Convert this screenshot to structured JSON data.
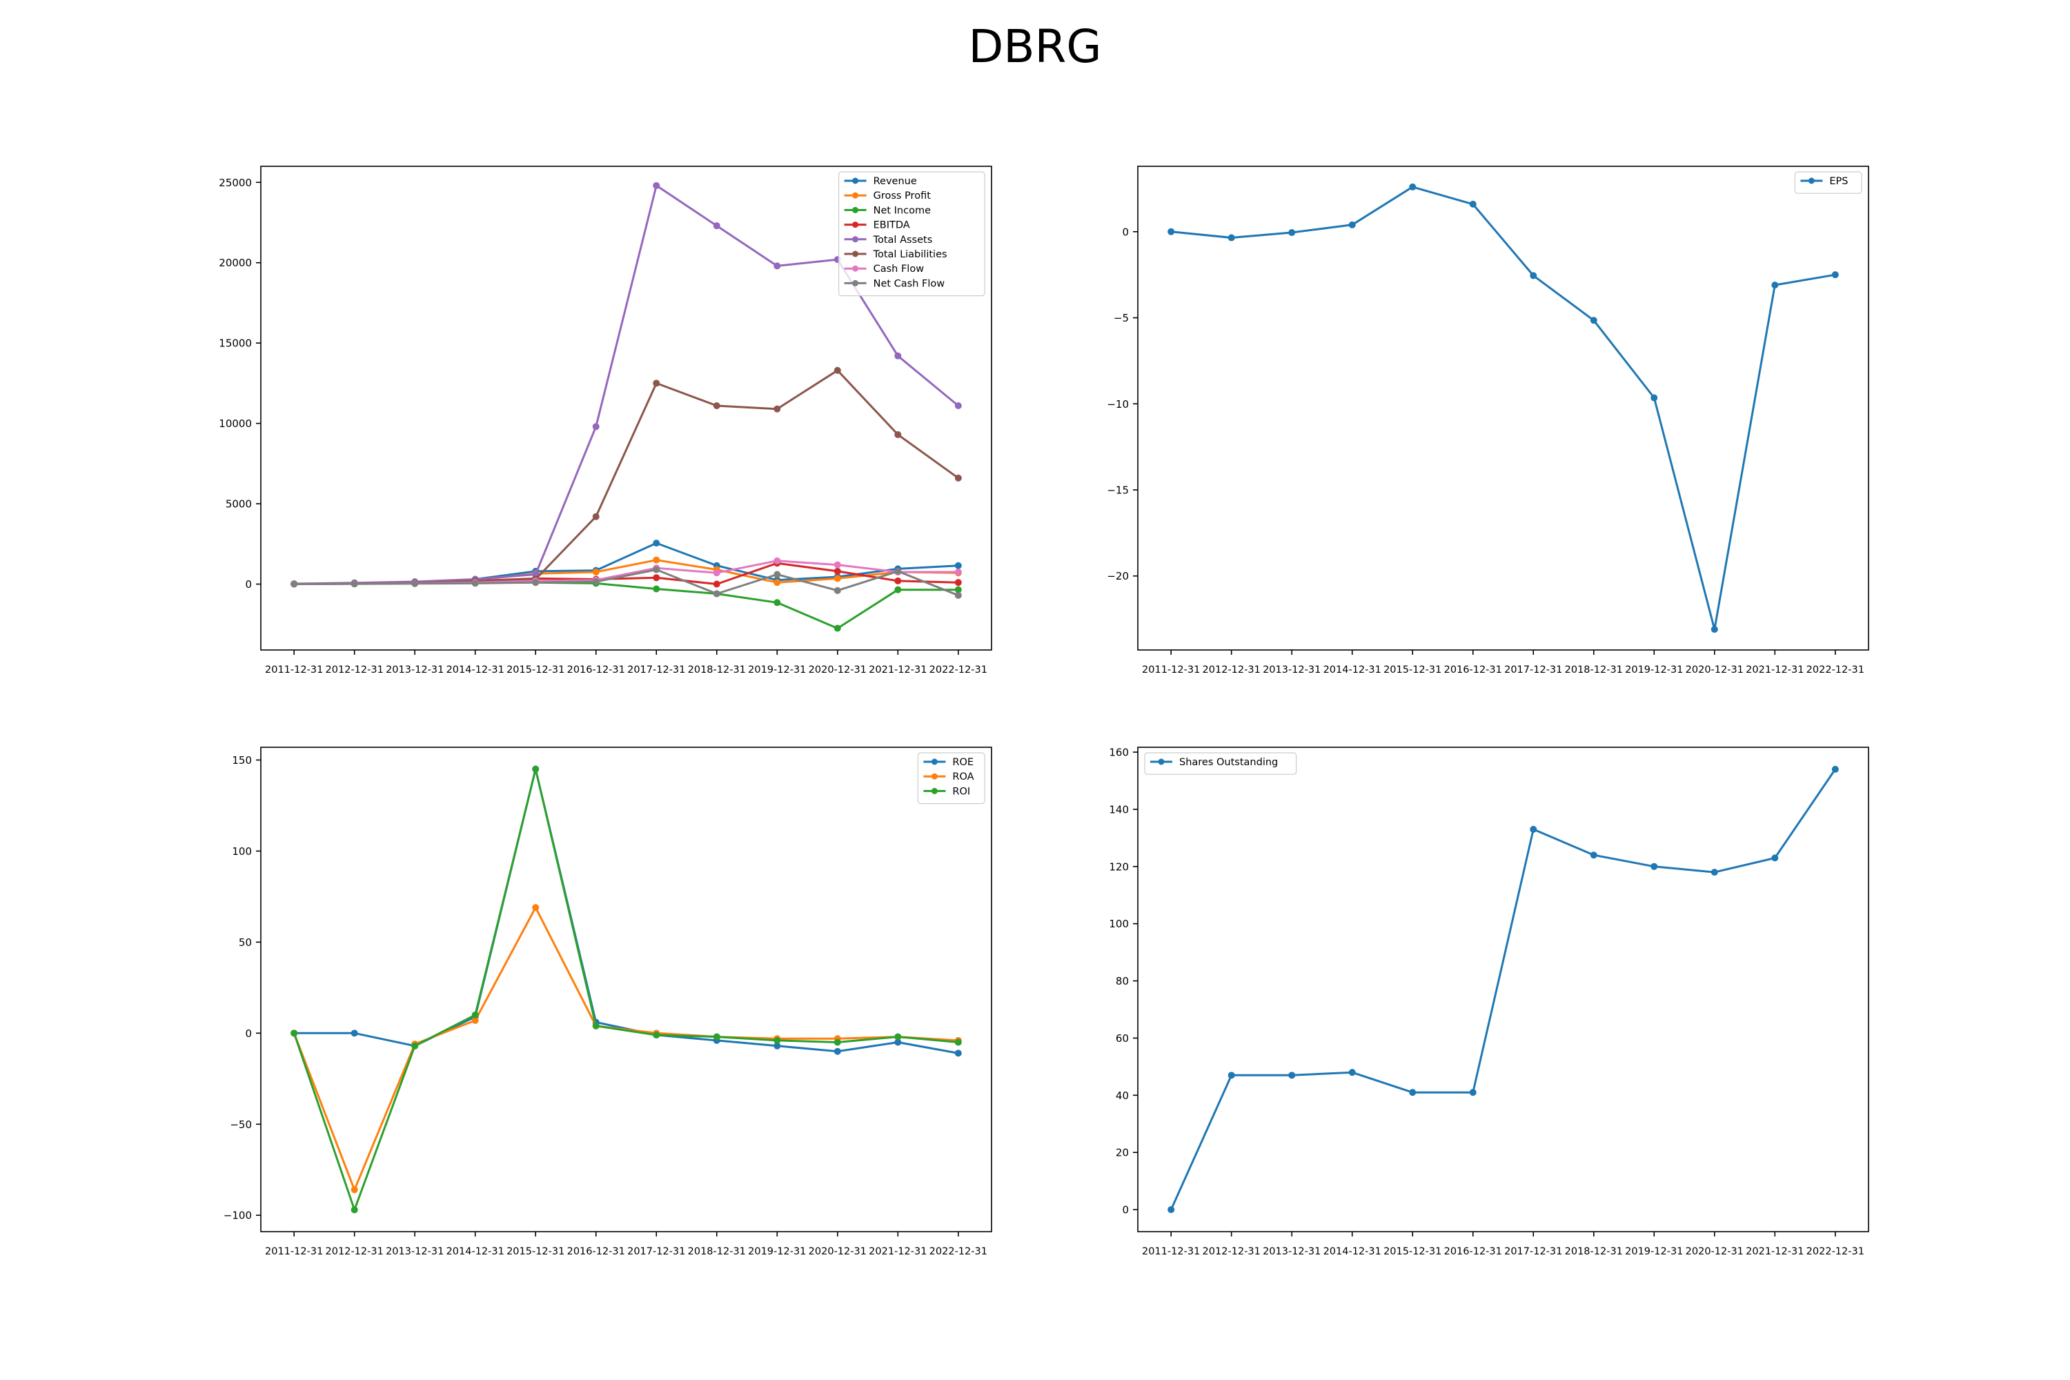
{
  "figure": {
    "title": "DBRG"
  },
  "colors": {
    "Revenue": "#1f77b4",
    "Gross Profit": "#ff7f0e",
    "Net Income": "#2ca02c",
    "EBITDA": "#d62728",
    "Total Assets": "#9467bd",
    "Total Liabilities": "#8c564b",
    "Cash Flow": "#e377c2",
    "Net Cash Flow": "#7f7f7f"
  },
  "chart_data": [
    {
      "type": "line",
      "x": [
        "2011-12-31",
        "2012-12-31",
        "2013-12-31",
        "2014-12-31",
        "2015-12-31",
        "2016-12-31",
        "2017-12-31",
        "2018-12-31",
        "2019-12-31",
        "2020-12-31",
        "2021-12-31",
        "2022-12-31"
      ],
      "ylim": [
        -4100,
        26000
      ],
      "yticks": [
        0,
        5000,
        10000,
        15000,
        20000,
        25000
      ],
      "ytick_labels": [
        "0",
        "5000",
        "10000",
        "15000",
        "20000",
        "25000"
      ],
      "legend": "top-right",
      "grid": false,
      "series": [
        {
          "name": "Revenue",
          "values": [
            10,
            50,
            100,
            300,
            800,
            850,
            2550,
            1150,
            250,
            450,
            950,
            1150
          ]
        },
        {
          "name": "Gross Profit",
          "values": [
            5,
            30,
            70,
            250,
            650,
            750,
            1500,
            900,
            100,
            350,
            750,
            700
          ]
        },
        {
          "name": "Net Income",
          "values": [
            5,
            20,
            40,
            100,
            100,
            50,
            -300,
            -600,
            -1150,
            -2750,
            -350,
            -350
          ]
        },
        {
          "name": "EBITDA",
          "values": [
            5,
            25,
            60,
            200,
            350,
            300,
            400,
            0,
            1300,
            800,
            200,
            100
          ]
        },
        {
          "name": "Total Assets",
          "values": [
            20,
            80,
            150,
            300,
            600,
            9800,
            24800,
            22300,
            19800,
            20200,
            14200,
            11100
          ]
        },
        {
          "name": "Total Liabilities",
          "values": [
            10,
            40,
            80,
            200,
            300,
            4200,
            12500,
            11100,
            10900,
            13300,
            9300,
            6600
          ]
        },
        {
          "name": "Cash Flow",
          "values": [
            0,
            20,
            50,
            100,
            200,
            250,
            1000,
            700,
            1450,
            1200,
            750,
            750
          ]
        },
        {
          "name": "Net Cash Flow",
          "values": [
            0,
            10,
            30,
            50,
            100,
            150,
            900,
            -600,
            600,
            -400,
            800,
            -700
          ]
        }
      ]
    },
    {
      "type": "line",
      "x": [
        "2011-12-31",
        "2012-12-31",
        "2013-12-31",
        "2014-12-31",
        "2015-12-31",
        "2016-12-31",
        "2017-12-31",
        "2018-12-31",
        "2019-12-31",
        "2020-12-31",
        "2021-12-31",
        "2022-12-31"
      ],
      "ylim": [
        -24.3,
        3.8
      ],
      "yticks": [
        0,
        -5,
        -10,
        -15,
        -20
      ],
      "ytick_labels": [
        "0",
        "−5",
        "−10",
        "−15",
        "−20"
      ],
      "legend": "top-right",
      "grid": false,
      "series": [
        {
          "name": "EPS",
          "values": [
            0.0,
            -0.35,
            -0.05,
            0.4,
            2.6,
            1.6,
            -2.55,
            -5.15,
            -9.65,
            -23.1,
            -3.1,
            -2.5
          ]
        }
      ]
    },
    {
      "type": "line",
      "x": [
        "2011-12-31",
        "2012-12-31",
        "2013-12-31",
        "2014-12-31",
        "2015-12-31",
        "2016-12-31",
        "2017-12-31",
        "2018-12-31",
        "2019-12-31",
        "2020-12-31",
        "2021-12-31",
        "2022-12-31"
      ],
      "ylim": [
        -109,
        157
      ],
      "yticks": [
        150,
        100,
        50,
        0,
        -50,
        -100
      ],
      "ytick_labels": [
        "150",
        "100",
        "50",
        "0",
        "−50",
        "−100"
      ],
      "legend": "top-right",
      "grid": false,
      "series": [
        {
          "name": "ROE",
          "values": [
            0,
            0,
            -7,
            9,
            145,
            6,
            -1,
            -4,
            -7,
            -10,
            -5,
            -11
          ]
        },
        {
          "name": "ROA",
          "values": [
            0,
            -86,
            -6,
            7,
            69,
            4,
            0,
            -2,
            -3,
            -3,
            -2,
            -4
          ]
        },
        {
          "name": "ROI",
          "values": [
            0,
            -97,
            -7,
            10,
            145,
            4,
            -1,
            -2,
            -4,
            -5,
            -2,
            -5
          ]
        }
      ]
    },
    {
      "type": "line",
      "x": [
        "2011-12-31",
        "2012-12-31",
        "2013-12-31",
        "2014-12-31",
        "2015-12-31",
        "2016-12-31",
        "2017-12-31",
        "2018-12-31",
        "2019-12-31",
        "2020-12-31",
        "2021-12-31",
        "2022-12-31"
      ],
      "ylim": [
        -7.7,
        161.7
      ],
      "yticks": [
        0,
        20,
        40,
        60,
        80,
        100,
        120,
        140,
        160
      ],
      "ytick_labels": [
        "0",
        "20",
        "40",
        "60",
        "80",
        "100",
        "120",
        "140",
        "160"
      ],
      "legend": "top-left",
      "grid": false,
      "series": [
        {
          "name": "Shares Outstanding",
          "values": [
            0,
            47,
            47,
            48,
            41,
            41,
            133,
            124,
            120,
            118,
            123,
            154
          ]
        }
      ]
    }
  ]
}
